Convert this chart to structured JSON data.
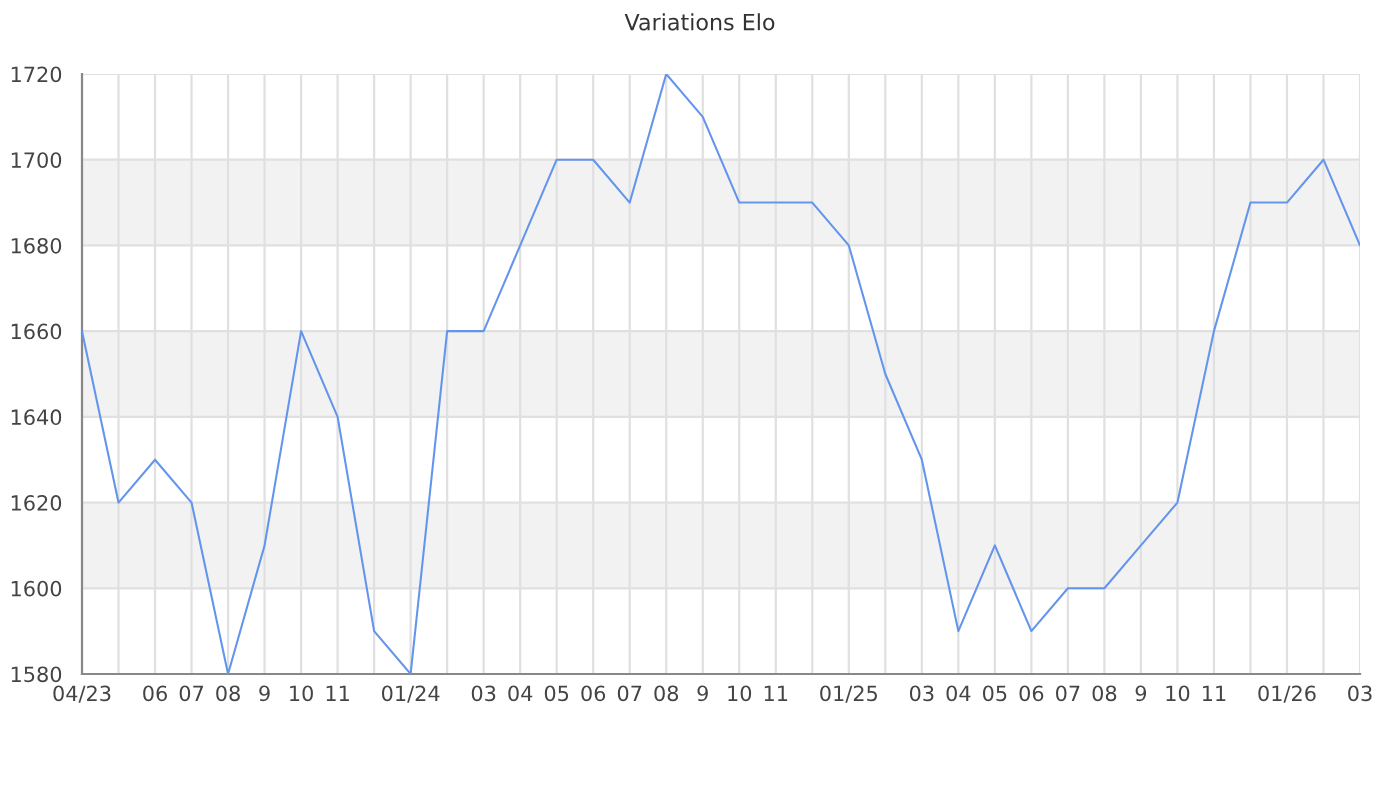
{
  "chart_data": {
    "type": "line",
    "title": "Variations Elo",
    "categories": [
      "04/23",
      null,
      "06",
      "07",
      "08",
      "9",
      "10",
      "11",
      null,
      "01/24",
      null,
      "03",
      "04",
      "05",
      "06",
      "07",
      "08",
      "9",
      "10",
      "11",
      null,
      "01/25",
      null,
      "03",
      "04",
      "05",
      "06",
      "07",
      "08",
      "9",
      "10",
      "11",
      null,
      "01/26",
      null,
      "03"
    ],
    "series": [
      {
        "color": "#6495ed",
        "values": [
          1660,
          1620,
          1630,
          1620,
          1580,
          1610,
          1660,
          1640,
          1590,
          1580,
          1660,
          1660,
          1680,
          1700,
          1700,
          1690,
          1720,
          1710,
          1690,
          1690,
          1690,
          1680,
          1650,
          1630,
          1590,
          1610,
          1590,
          1600,
          1600,
          1610,
          1620,
          1660,
          1690,
          1690,
          1700,
          1680
        ]
      }
    ],
    "ylim": [
      1580,
      1720
    ],
    "yticks": [
      1580,
      1600,
      1620,
      1640,
      1660,
      1680,
      1700,
      1720
    ],
    "bands": [
      {
        "axis": "y",
        "from": 1600,
        "to": 1620,
        "color": "#f2f2f2"
      },
      {
        "axis": "y",
        "from": 1640,
        "to": 1660,
        "color": "#f2f2f2"
      },
      {
        "axis": "y",
        "from": 1680,
        "to": 1700,
        "color": "#f2f2f2"
      }
    ],
    "grid": true,
    "marker": "none",
    "line_style": "solid"
  }
}
